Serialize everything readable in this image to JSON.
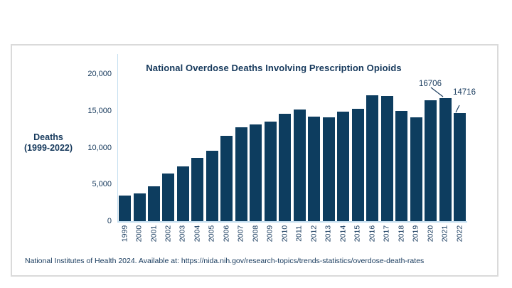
{
  "window": {
    "background": "#ffffff"
  },
  "chart_data": {
    "type": "bar",
    "title": "National Overdose Deaths Involving Prescription Opioids",
    "ylabel_lines": [
      "Deaths",
      "(1999-2022)"
    ],
    "xlabel": "",
    "categories": [
      "1999",
      "2000",
      "2001",
      "2002",
      "2003",
      "2004",
      "2005",
      "2006",
      "2007",
      "2008",
      "2009",
      "2010",
      "2011",
      "2012",
      "2013",
      "2014",
      "2015",
      "2016",
      "2017",
      "2018",
      "2019",
      "2020",
      "2021",
      "2022"
    ],
    "values": [
      3442,
      3785,
      4770,
      6483,
      7461,
      8577,
      9612,
      11589,
      12796,
      13149,
      13523,
      14583,
      15140,
      14240,
      14145,
      14838,
      15281,
      17087,
      17029,
      14975,
      14139,
      16416,
      16706,
      14716
    ],
    "ylim": [
      0,
      20000
    ],
    "ytick_values": [
      0,
      5000,
      10000,
      15000,
      20000
    ],
    "ytick_labels": [
      "0",
      "5,000",
      "10,000",
      "15,000",
      "20,000"
    ],
    "grid": false,
    "legend_position": "none",
    "annotations": [
      {
        "category": "2021",
        "label": "16706"
      },
      {
        "category": "2022",
        "label": "14716"
      }
    ]
  },
  "footer": {
    "source_text": "National Institutes of Health 2024. Available at: https://nida.nih.gov/research-topics/trends-statistics/overdose-death-rates"
  },
  "colors": {
    "bar": "#0d3d5f",
    "text": "#16395c",
    "axis_line": "#c3def0",
    "card_border": "#dadada",
    "annotation_line": "#1e3f60"
  }
}
